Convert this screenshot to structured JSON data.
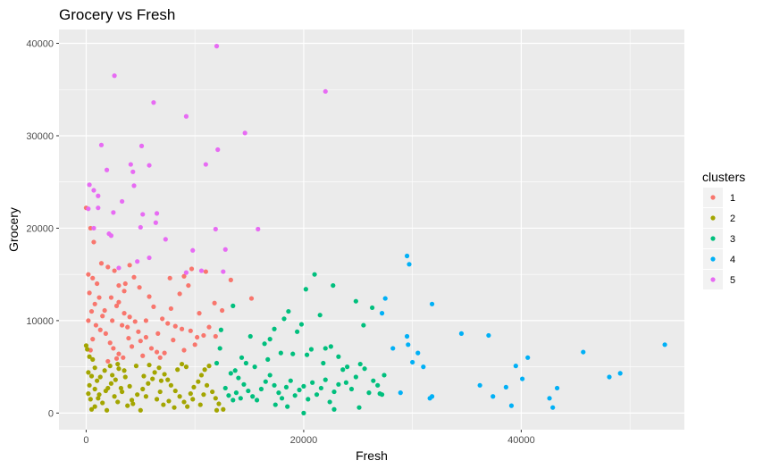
{
  "chart_data": {
    "type": "scatter",
    "title": "Grocery vs Fresh",
    "xlabel": "Fresh",
    "ylabel": "Grocery",
    "xlim": [
      -2500,
      55000
    ],
    "ylim": [
      -1800,
      41500
    ],
    "x_ticks": [
      0,
      20000,
      40000
    ],
    "x_tick_labels": [
      "0",
      "20000",
      "40000"
    ],
    "y_ticks": [
      0,
      10000,
      20000,
      30000,
      40000
    ],
    "y_tick_labels": [
      "0",
      "10000",
      "20000",
      "30000",
      "40000"
    ],
    "grid": true,
    "legend": {
      "title": "clusters",
      "placement": "right"
    },
    "series": [
      {
        "name": "1",
        "color": "#F8766D",
        "points": [
          [
            0,
            22200
          ],
          [
            400,
            20000
          ],
          [
            700,
            18500
          ],
          [
            200,
            15000
          ],
          [
            600,
            14600
          ],
          [
            1000,
            14000
          ],
          [
            300,
            13000
          ],
          [
            1200,
            12500
          ],
          [
            800,
            11800
          ],
          [
            500,
            11000
          ],
          [
            1500,
            10500
          ],
          [
            200,
            10000
          ],
          [
            900,
            9500
          ],
          [
            1300,
            9000
          ],
          [
            1800,
            8600
          ],
          [
            600,
            8000
          ],
          [
            2200,
            7600
          ],
          [
            2500,
            7000
          ],
          [
            400,
            6800
          ],
          [
            3000,
            6400
          ],
          [
            3400,
            6000
          ],
          [
            2000,
            5600
          ],
          [
            1400,
            16200
          ],
          [
            2000,
            15800
          ],
          [
            2600,
            15400
          ],
          [
            3000,
            13800
          ],
          [
            3500,
            13200
          ],
          [
            3000,
            12000
          ],
          [
            2800,
            11600
          ],
          [
            3500,
            10800
          ],
          [
            4000,
            10400
          ],
          [
            4500,
            9900
          ],
          [
            3800,
            9300
          ],
          [
            4800,
            8800
          ],
          [
            5500,
            8200
          ],
          [
            5000,
            7800
          ],
          [
            4200,
            7200
          ],
          [
            6000,
            7000
          ],
          [
            6500,
            6600
          ],
          [
            5200,
            6200
          ],
          [
            6800,
            6000
          ],
          [
            7000,
            10200
          ],
          [
            7500,
            9700
          ],
          [
            8200,
            9400
          ],
          [
            8800,
            9100
          ],
          [
            9600,
            8900
          ],
          [
            10200,
            8200
          ],
          [
            10800,
            8400
          ],
          [
            8000,
            7900
          ],
          [
            9000,
            6800
          ],
          [
            7200,
            6500
          ],
          [
            6200,
            11500
          ],
          [
            5800,
            12600
          ],
          [
            4900,
            13600
          ],
          [
            4400,
            14700
          ],
          [
            4000,
            16000
          ],
          [
            3600,
            14000
          ],
          [
            2300,
            12500
          ],
          [
            1700,
            11100
          ],
          [
            2400,
            10000
          ],
          [
            3300,
            9500
          ],
          [
            3900,
            8100
          ],
          [
            7800,
            11300
          ],
          [
            8600,
            12900
          ],
          [
            9400,
            13800
          ],
          [
            9000,
            14800
          ],
          [
            9700,
            15600
          ],
          [
            11000,
            15300
          ],
          [
            11800,
            11900
          ],
          [
            12500,
            11100
          ],
          [
            10400,
            10800
          ],
          [
            11300,
            9300
          ],
          [
            11900,
            8300
          ],
          [
            10000,
            7400
          ],
          [
            13300,
            14400
          ],
          [
            15200,
            12400
          ],
          [
            7700,
            14600
          ],
          [
            5500,
            10000
          ],
          [
            6600,
            8600
          ],
          [
            2800,
            5900
          ]
        ]
      },
      {
        "name": "2",
        "color": "#A3A500",
        "points": [
          [
            0,
            7300
          ],
          [
            100,
            6900
          ],
          [
            300,
            6100
          ],
          [
            600,
            5800
          ],
          [
            200,
            4400
          ],
          [
            500,
            4000
          ],
          [
            1000,
            3500
          ],
          [
            300,
            3000
          ],
          [
            800,
            2600
          ],
          [
            200,
            2100
          ],
          [
            1200,
            2000
          ],
          [
            400,
            1500
          ],
          [
            1500,
            1100
          ],
          [
            800,
            700
          ],
          [
            1900,
            300
          ],
          [
            500,
            400
          ],
          [
            1100,
            1600
          ],
          [
            1800,
            2400
          ],
          [
            2300,
            3200
          ],
          [
            2700,
            3600
          ],
          [
            2400,
            4100
          ],
          [
            3000,
            4800
          ],
          [
            2900,
            5300
          ],
          [
            3500,
            4600
          ],
          [
            3600,
            3900
          ],
          [
            4000,
            2900
          ],
          [
            3300,
            2300
          ],
          [
            2600,
            1800
          ],
          [
            2900,
            1200
          ],
          [
            3800,
            800
          ],
          [
            4200,
            1400
          ],
          [
            4700,
            2000
          ],
          [
            5200,
            2600
          ],
          [
            5700,
            3200
          ],
          [
            6100,
            3700
          ],
          [
            6300,
            4400
          ],
          [
            5800,
            5200
          ],
          [
            6700,
            4900
          ],
          [
            7200,
            4200
          ],
          [
            7500,
            3600
          ],
          [
            7800,
            3000
          ],
          [
            8200,
            2400
          ],
          [
            8600,
            1800
          ],
          [
            9000,
            1200
          ],
          [
            9300,
            700
          ],
          [
            9600,
            2100
          ],
          [
            9900,
            2800
          ],
          [
            10300,
            3400
          ],
          [
            10600,
            4100
          ],
          [
            10900,
            4700
          ],
          [
            11300,
            5100
          ],
          [
            11100,
            3000
          ],
          [
            11600,
            2300
          ],
          [
            11900,
            1600
          ],
          [
            12200,
            1000
          ],
          [
            12600,
            400
          ],
          [
            12000,
            300
          ],
          [
            8400,
            4700
          ],
          [
            8800,
            5300
          ],
          [
            9200,
            5000
          ],
          [
            4600,
            5100
          ],
          [
            4300,
            1000
          ],
          [
            6500,
            1500
          ],
          [
            7100,
            900
          ],
          [
            5000,
            300
          ],
          [
            5500,
            1800
          ],
          [
            6800,
            2300
          ],
          [
            7600,
            1300
          ],
          [
            8100,
            600
          ],
          [
            9800,
            1500
          ],
          [
            10500,
            900
          ],
          [
            10800,
            2000
          ],
          [
            2000,
            2700
          ],
          [
            1300,
            3900
          ],
          [
            2200,
            5100
          ],
          [
            800,
            4900
          ],
          [
            1700,
            4600
          ],
          [
            3200,
            2700
          ],
          [
            5300,
            4000
          ],
          [
            6900,
            3500
          ]
        ]
      },
      {
        "name": "3",
        "color": "#00BF7D",
        "points": [
          [
            12800,
            2700
          ],
          [
            13100,
            1900
          ],
          [
            13500,
            1400
          ],
          [
            13800,
            2200
          ],
          [
            14200,
            1600
          ],
          [
            13300,
            4300
          ],
          [
            13700,
            4600
          ],
          [
            14000,
            3800
          ],
          [
            14500,
            3100
          ],
          [
            14900,
            2400
          ],
          [
            15300,
            1800
          ],
          [
            15700,
            1400
          ],
          [
            16100,
            2600
          ],
          [
            16500,
            3400
          ],
          [
            16900,
            4100
          ],
          [
            17300,
            3000
          ],
          [
            17700,
            2200
          ],
          [
            18000,
            1600
          ],
          [
            18400,
            2800
          ],
          [
            18800,
            3500
          ],
          [
            19200,
            1900
          ],
          [
            19600,
            2500
          ],
          [
            20000,
            2900
          ],
          [
            20400,
            1500
          ],
          [
            20800,
            3300
          ],
          [
            21200,
            2000
          ],
          [
            21600,
            2700
          ],
          [
            22000,
            3600
          ],
          [
            22400,
            1200
          ],
          [
            22800,
            2300
          ],
          [
            23200,
            3100
          ],
          [
            23600,
            4700
          ],
          [
            24000,
            5000
          ],
          [
            24400,
            2600
          ],
          [
            24800,
            3900
          ],
          [
            25200,
            5300
          ],
          [
            25600,
            4800
          ],
          [
            26000,
            2200
          ],
          [
            26400,
            3500
          ],
          [
            26800,
            3000
          ],
          [
            27200,
            2000
          ],
          [
            27400,
            4100
          ],
          [
            18200,
            10200
          ],
          [
            18600,
            11000
          ],
          [
            19400,
            8800
          ],
          [
            19800,
            9600
          ],
          [
            20200,
            13400
          ],
          [
            21000,
            15000
          ],
          [
            21500,
            10600
          ],
          [
            22000,
            7000
          ],
          [
            22700,
            13800
          ],
          [
            20300,
            6300
          ],
          [
            20700,
            6900
          ],
          [
            21800,
            5400
          ],
          [
            22500,
            7200
          ],
          [
            23200,
            6100
          ],
          [
            25500,
            9500
          ],
          [
            24800,
            12100
          ],
          [
            26300,
            11400
          ],
          [
            16400,
            7500
          ],
          [
            16900,
            8000
          ],
          [
            17300,
            9100
          ],
          [
            17900,
            6500
          ],
          [
            15100,
            8300
          ],
          [
            14300,
            6000
          ],
          [
            13500,
            11600
          ],
          [
            12300,
            7000
          ],
          [
            12000,
            5400
          ],
          [
            12400,
            9000
          ],
          [
            14700,
            5400
          ],
          [
            15500,
            5000
          ],
          [
            16700,
            5800
          ],
          [
            19000,
            6400
          ],
          [
            20000,
            0
          ],
          [
            22800,
            400
          ],
          [
            17400,
            900
          ],
          [
            25100,
            600
          ],
          [
            18500,
            700
          ],
          [
            23900,
            3300
          ],
          [
            27000,
            2100
          ]
        ]
      },
      {
        "name": "4",
        "color": "#00B0F6",
        "points": [
          [
            29500,
            17000
          ],
          [
            29700,
            16100
          ],
          [
            27500,
            12400
          ],
          [
            27200,
            10800
          ],
          [
            31800,
            11800
          ],
          [
            29500,
            8300
          ],
          [
            29600,
            7400
          ],
          [
            28200,
            7000
          ],
          [
            30500,
            6500
          ],
          [
            31000,
            5000
          ],
          [
            30000,
            5500
          ],
          [
            31600,
            1600
          ],
          [
            31800,
            1800
          ],
          [
            28900,
            2200
          ],
          [
            34500,
            8600
          ],
          [
            37000,
            8400
          ],
          [
            36200,
            3000
          ],
          [
            37400,
            1800
          ],
          [
            38600,
            2800
          ],
          [
            39100,
            800
          ],
          [
            39500,
            5100
          ],
          [
            40100,
            3700
          ],
          [
            40600,
            6000
          ],
          [
            42600,
            1600
          ],
          [
            42900,
            600
          ],
          [
            43300,
            2700
          ],
          [
            45700,
            6600
          ],
          [
            48100,
            3900
          ],
          [
            49100,
            4300
          ],
          [
            53200,
            7400
          ]
        ]
      },
      {
        "name": "5",
        "color": "#E76BF3",
        "points": [
          [
            12000,
            39700
          ],
          [
            22000,
            34800
          ],
          [
            2600,
            36500
          ],
          [
            6200,
            33600
          ],
          [
            9200,
            32100
          ],
          [
            14600,
            30300
          ],
          [
            1400,
            29000
          ],
          [
            5100,
            28900
          ],
          [
            12100,
            28500
          ],
          [
            11000,
            26900
          ],
          [
            1900,
            26300
          ],
          [
            4100,
            26900
          ],
          [
            4300,
            26100
          ],
          [
            5800,
            26800
          ],
          [
            300,
            24700
          ],
          [
            700,
            24100
          ],
          [
            1100,
            23500
          ],
          [
            3300,
            22900
          ],
          [
            4400,
            24600
          ],
          [
            200,
            22100
          ],
          [
            1100,
            22200
          ],
          [
            2500,
            21700
          ],
          [
            5200,
            21500
          ],
          [
            6500,
            21600
          ],
          [
            5000,
            20100
          ],
          [
            6400,
            20600
          ],
          [
            700,
            20000
          ],
          [
            2100,
            19400
          ],
          [
            2300,
            19200
          ],
          [
            7300,
            18800
          ],
          [
            9800,
            17600
          ],
          [
            11900,
            19900
          ],
          [
            12800,
            17700
          ],
          [
            15800,
            19900
          ],
          [
            10600,
            15400
          ],
          [
            3000,
            15700
          ],
          [
            4700,
            16400
          ],
          [
            5800,
            16800
          ],
          [
            9200,
            15200
          ],
          [
            12600,
            15300
          ]
        ]
      }
    ]
  }
}
